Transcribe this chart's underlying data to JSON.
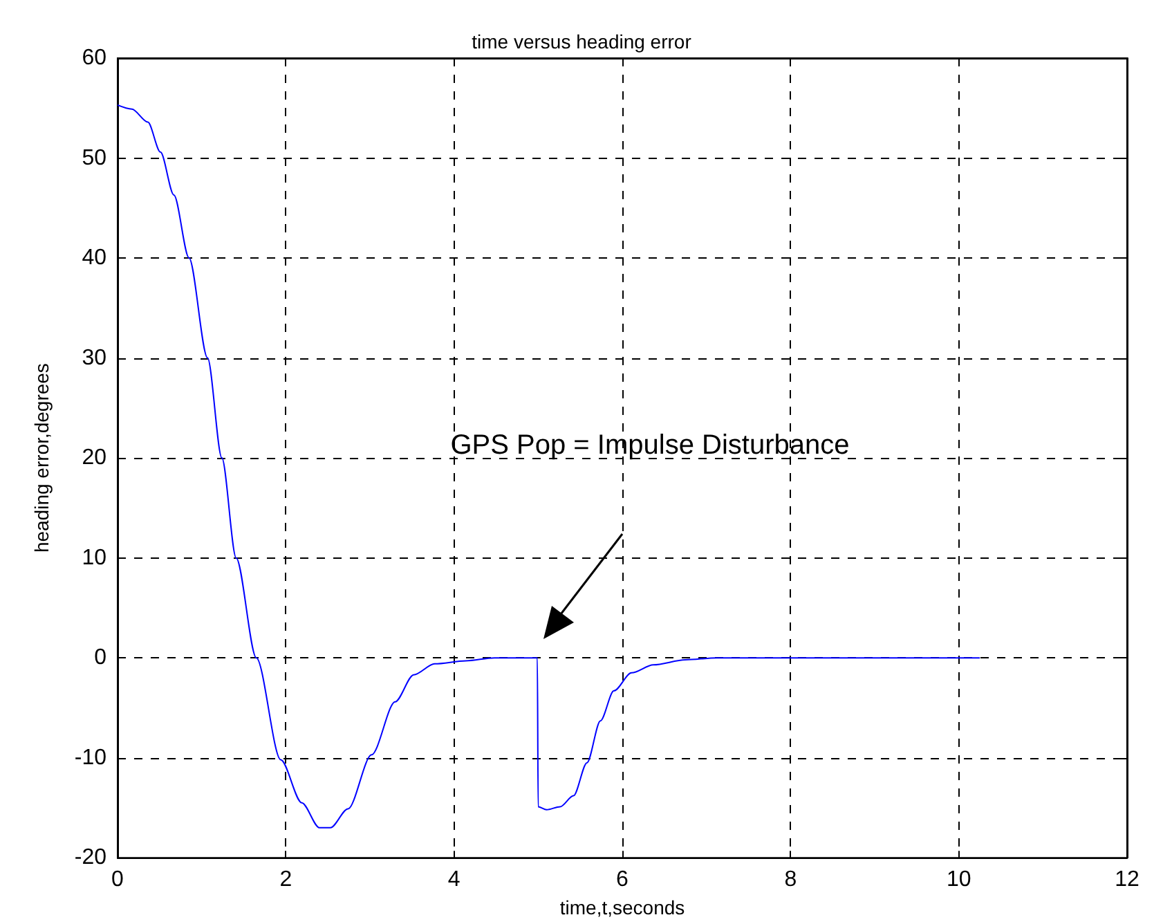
{
  "chart_data": {
    "type": "line",
    "title": "time versus heading error",
    "xlabel": "time,t,seconds",
    "ylabel": "heading error,degrees",
    "x": [
      0,
      0.17,
      0.36,
      0.51,
      0.67,
      0.85,
      1.07,
      1.24,
      1.41,
      1.65,
      1.94,
      2.19,
      2.4,
      2.53,
      2.74,
      3.02,
      3.3,
      3.52,
      3.77,
      4.14,
      4.48,
      4.99,
      5.0,
      5.1,
      5.26,
      5.42,
      5.58,
      5.74,
      5.9,
      6.11,
      6.37,
      6.75,
      7.12,
      10.25
    ],
    "series": [
      {
        "color": "#0000ff",
        "values": [
          55.3,
          54.9,
          53.6,
          50.6,
          46.3,
          40,
          30,
          20,
          10,
          0,
          -10.2,
          -14.5,
          -17,
          -17,
          -15.1,
          -9.7,
          -4.4,
          -1.7,
          -0.6,
          -0.3,
          0,
          0,
          -14.9,
          -15.2,
          -14.9,
          -13.8,
          -10.5,
          -6.3,
          -3.3,
          -1.5,
          -0.7,
          -0.2,
          0,
          0
        ]
      }
    ],
    "xlim": [
      0,
      12
    ],
    "xticks": [
      0,
      2,
      4,
      6,
      8,
      10,
      12
    ],
    "ylim": [
      -20,
      60
    ],
    "yticks": [
      -20,
      -10,
      0,
      10,
      20,
      30,
      40,
      50,
      60
    ],
    "grid": true,
    "marker": "none",
    "line_style": "solid",
    "annotations": [
      "GPS Pop = Impulse Disturbance"
    ]
  }
}
